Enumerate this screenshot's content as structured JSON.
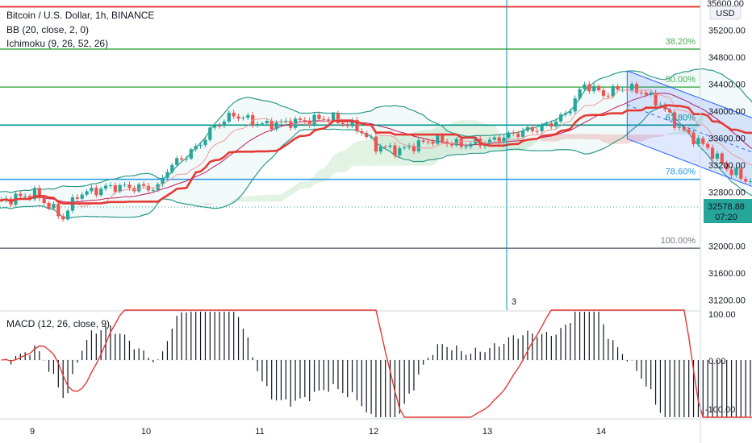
{
  "header": {
    "title": "Bitcoin / U.S. Dollar, 1h, BINANCE",
    "bb": "BB (20, close, 2, 0)",
    "ichimoku": "Ichimoku (9, 26, 52, 26)",
    "macd": "MACD (12, 26, close, 9)"
  },
  "chart_data": {
    "type": "candlestick",
    "symbol": "BTCUSD",
    "timeframe": "1h",
    "x_ticks": [
      "9",
      "10",
      "11",
      "12",
      "13",
      "14"
    ],
    "price_axis": {
      "unit": "USD",
      "ticks": [
        "35200.00",
        "34800.00",
        "34400.00",
        "34000.00",
        "33600.00",
        "33200.00",
        "32800.00",
        "32000.00",
        "31600.00",
        "31200.00"
      ],
      "top_label": "35600.00",
      "range": [
        31050,
        35650
      ]
    },
    "current_price": {
      "value": "32578.88",
      "countdown": "07:20"
    },
    "fib_levels": [
      {
        "label": "38.20%",
        "price": 34922,
        "color": "#4caf50"
      },
      {
        "label": "50.00%",
        "price": 34358,
        "color": "#4caf50"
      },
      {
        "label": "61.80%",
        "price": 33794,
        "color": "#009688"
      },
      {
        "label": "78.60%",
        "price": 32990,
        "color": "#2196f3"
      },
      {
        "label": "100.00%",
        "price": 31968,
        "color": "#787b86"
      }
    ],
    "top_line_price": 35550,
    "crosshair": {
      "label": "3"
    },
    "macd_axis": {
      "ticks": [
        "100.00",
        "0.00",
        "-100.00"
      ]
    },
    "colors": {
      "up": "#26a69a",
      "down": "#ef5350",
      "base_line": "#e53935",
      "bb": "#2e9a8a",
      "channel": "#2962ff",
      "arrow": "#2196f3"
    }
  }
}
